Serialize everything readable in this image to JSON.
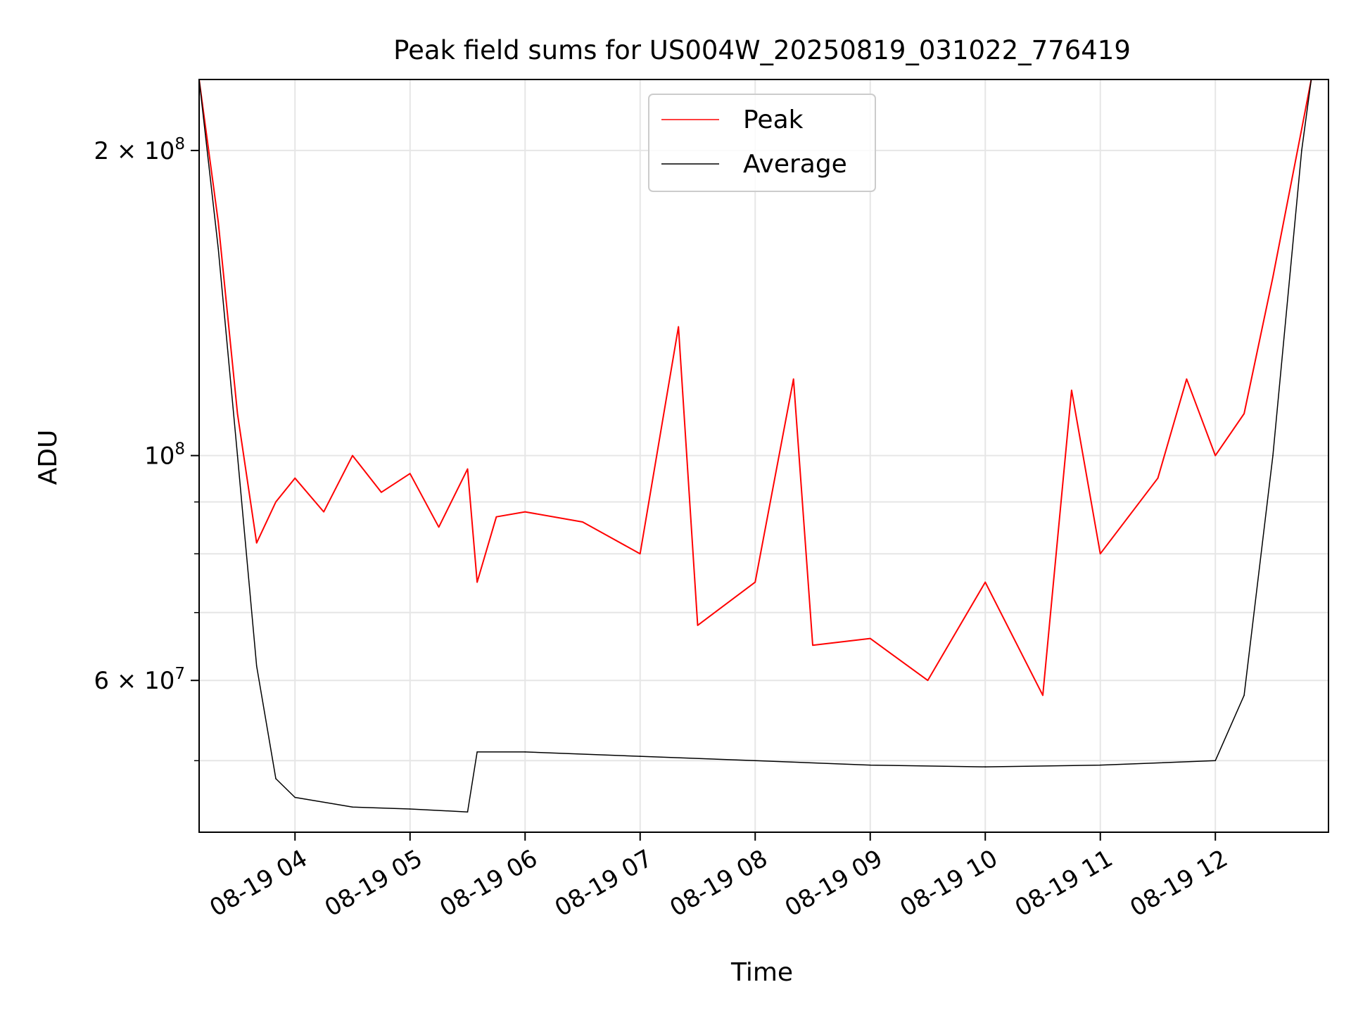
{
  "chart_data": {
    "type": "line",
    "title": "Peak field sums for US004W_20250819_031022_776419",
    "xlabel": "Time",
    "ylabel": "ADU",
    "x_scale": "time",
    "y_scale": "log",
    "xlim": [
      "2025-08-19 03:10",
      "2025-08-19 12:59"
    ],
    "ylim": [
      42500000,
      235000000
    ],
    "grid": true,
    "legend_position": "upper center",
    "x_ticks": [
      {
        "time": "2025-08-19 04:00",
        "label": "08-19 04"
      },
      {
        "time": "2025-08-19 05:00",
        "label": "08-19 05"
      },
      {
        "time": "2025-08-19 06:00",
        "label": "08-19 06"
      },
      {
        "time": "2025-08-19 07:00",
        "label": "08-19 07"
      },
      {
        "time": "2025-08-19 08:00",
        "label": "08-19 08"
      },
      {
        "time": "2025-08-19 09:00",
        "label": "08-19 09"
      },
      {
        "time": "2025-08-19 10:00",
        "label": "08-19 10"
      },
      {
        "time": "2025-08-19 11:00",
        "label": "08-19 11"
      },
      {
        "time": "2025-08-19 12:00",
        "label": "08-19 12"
      }
    ],
    "y_ticks_major": [
      {
        "value": 60000000,
        "mantissa": "6",
        "exponent": "7"
      },
      {
        "value": 100000000,
        "mantissa": "",
        "exponent": "8"
      },
      {
        "value": 200000000,
        "mantissa": "2",
        "exponent": "8"
      }
    ],
    "y_ticks_minor": [
      50000000,
      70000000,
      80000000,
      90000000
    ],
    "series": [
      {
        "name": "Peak",
        "color": "#ff0000",
        "x": [
          "2025-08-19 03:10",
          "2025-08-19 03:20",
          "2025-08-19 03:30",
          "2025-08-19 03:40",
          "2025-08-19 03:50",
          "2025-08-19 04:00",
          "2025-08-19 04:15",
          "2025-08-19 04:30",
          "2025-08-19 04:45",
          "2025-08-19 05:00",
          "2025-08-19 05:15",
          "2025-08-19 05:30",
          "2025-08-19 05:35",
          "2025-08-19 05:45",
          "2025-08-19 06:00",
          "2025-08-19 06:30",
          "2025-08-19 07:00",
          "2025-08-19 07:20",
          "2025-08-19 07:30",
          "2025-08-19 08:00",
          "2025-08-19 08:20",
          "2025-08-19 08:30",
          "2025-08-19 09:00",
          "2025-08-19 09:30",
          "2025-08-19 10:00",
          "2025-08-19 10:30",
          "2025-08-19 10:45",
          "2025-08-19 11:00",
          "2025-08-19 11:30",
          "2025-08-19 11:45",
          "2025-08-19 12:00",
          "2025-08-19 12:15",
          "2025-08-19 12:30",
          "2025-08-19 12:45",
          "2025-08-19 12:50"
        ],
        "y": [
          235000000,
          170000000,
          110000000,
          82000000,
          90000000,
          95000000,
          88000000,
          100000000,
          92000000,
          96000000,
          85000000,
          97000000,
          75000000,
          87000000,
          88000000,
          86000000,
          80000000,
          134000000,
          68000000,
          75000000,
          119000000,
          65000000,
          66000000,
          60000000,
          75000000,
          58000000,
          116000000,
          80000000,
          95000000,
          119000000,
          100000000,
          110000000,
          150000000,
          210000000,
          235000000
        ]
      },
      {
        "name": "Average",
        "color": "#000000",
        "x": [
          "2025-08-19 03:10",
          "2025-08-19 03:20",
          "2025-08-19 03:30",
          "2025-08-19 03:40",
          "2025-08-19 03:50",
          "2025-08-19 04:00",
          "2025-08-19 04:30",
          "2025-08-19 05:00",
          "2025-08-19 05:30",
          "2025-08-19 05:35",
          "2025-08-19 06:00",
          "2025-08-19 07:00",
          "2025-08-19 08:00",
          "2025-08-19 09:00",
          "2025-08-19 10:00",
          "2025-08-19 11:00",
          "2025-08-19 12:00",
          "2025-08-19 12:15",
          "2025-08-19 12:30",
          "2025-08-19 12:45",
          "2025-08-19 12:50"
        ],
        "y": [
          235000000,
          160000000,
          100000000,
          62000000,
          48000000,
          46000000,
          45000000,
          44800000,
          44500000,
          51000000,
          51000000,
          50500000,
          50000000,
          49500000,
          49300000,
          49500000,
          50000000,
          58000000,
          100000000,
          200000000,
          235000000
        ]
      }
    ]
  }
}
